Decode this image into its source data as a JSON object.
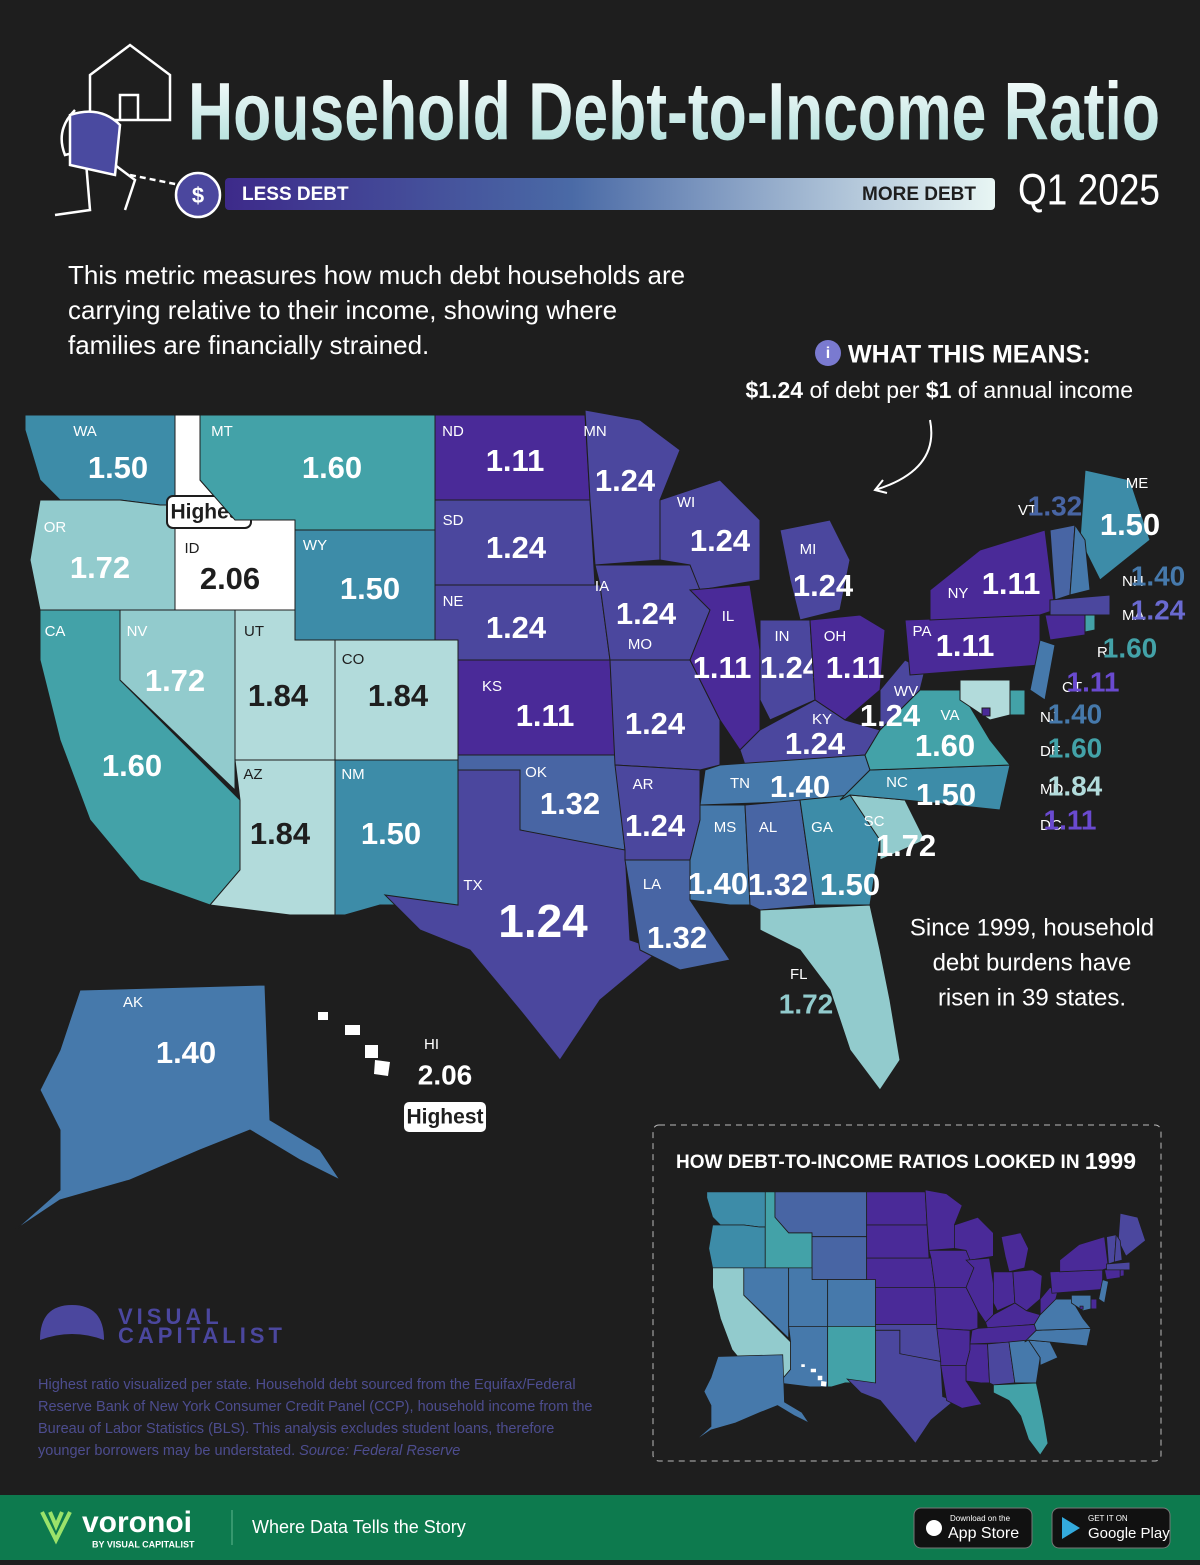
{
  "header": {
    "title": "Household Debt-to-Income Ratio",
    "period": "Q1 2025",
    "legend": {
      "low": "LESS DEBT",
      "high": "MORE DEBT"
    }
  },
  "intro": [
    "This metric measures how much debt households are",
    "carrying relative to their income, showing where",
    "families are financially strained."
  ],
  "what_this_means": {
    "heading": "WHAT THIS MEANS:",
    "text": [
      "$1.24",
      " of debt per ",
      "$1",
      " of annual income"
    ]
  },
  "highest_label": "Highest",
  "states": [
    {
      "abbr": "WA",
      "value": "1.50"
    },
    {
      "abbr": "OR",
      "value": "1.72"
    },
    {
      "abbr": "ID",
      "value": "2.06"
    },
    {
      "abbr": "MT",
      "value": "1.60"
    },
    {
      "abbr": "WY",
      "value": "1.50"
    },
    {
      "abbr": "CA",
      "value": "1.60"
    },
    {
      "abbr": "NV",
      "value": "1.72"
    },
    {
      "abbr": "UT",
      "value": "1.84"
    },
    {
      "abbr": "CO",
      "value": "1.84"
    },
    {
      "abbr": "AZ",
      "value": "1.84"
    },
    {
      "abbr": "NM",
      "value": "1.50"
    },
    {
      "abbr": "ND",
      "value": "1.11"
    },
    {
      "abbr": "SD",
      "value": "1.24"
    },
    {
      "abbr": "NE",
      "value": "1.24"
    },
    {
      "abbr": "KS",
      "value": "1.11"
    },
    {
      "abbr": "OK",
      "value": "1.32"
    },
    {
      "abbr": "TX",
      "value": "1.24"
    },
    {
      "abbr": "MN",
      "value": "1.24"
    },
    {
      "abbr": "IA",
      "value": "1.24"
    },
    {
      "abbr": "MO",
      "value": "1.24"
    },
    {
      "abbr": "AR",
      "value": "1.24"
    },
    {
      "abbr": "LA",
      "value": "1.32"
    },
    {
      "abbr": "WI",
      "value": "1.24"
    },
    {
      "abbr": "IL",
      "value": "1.11"
    },
    {
      "abbr": "MI",
      "value": "1.24"
    },
    {
      "abbr": "IN",
      "value": "1.24"
    },
    {
      "abbr": "OH",
      "value": "1.11"
    },
    {
      "abbr": "KY",
      "value": "1.24"
    },
    {
      "abbr": "TN",
      "value": "1.40"
    },
    {
      "abbr": "MS",
      "value": "1.40"
    },
    {
      "abbr": "AL",
      "value": "1.32"
    },
    {
      "abbr": "GA",
      "value": "1.50"
    },
    {
      "abbr": "FL",
      "value": "1.72"
    },
    {
      "abbr": "SC",
      "value": "1.72"
    },
    {
      "abbr": "NC",
      "value": "1.50"
    },
    {
      "abbr": "VA",
      "value": "1.60"
    },
    {
      "abbr": "WV",
      "value": "1.24"
    },
    {
      "abbr": "PA",
      "value": "1.11"
    },
    {
      "abbr": "NY",
      "value": "1.11"
    },
    {
      "abbr": "VT",
      "value": "1.32"
    },
    {
      "abbr": "ME",
      "value": "1.50"
    },
    {
      "abbr": "NH",
      "value": "1.40"
    },
    {
      "abbr": "MA",
      "value": "1.24"
    },
    {
      "abbr": "RI",
      "value": "1.60"
    },
    {
      "abbr": "CT",
      "value": "1.11"
    },
    {
      "abbr": "NJ",
      "value": "1.40"
    },
    {
      "abbr": "DE",
      "value": "1.60"
    },
    {
      "abbr": "MD",
      "value": "1.84"
    },
    {
      "abbr": "DC",
      "value": "1.11"
    },
    {
      "abbr": "AK",
      "value": "1.40"
    },
    {
      "abbr": "HI",
      "value": "2.06"
    }
  ],
  "note": [
    "Since 1999, household",
    "debt burdens have",
    "risen in 39 states."
  ],
  "inset": {
    "title": "HOW DEBT-TO-INCOME RATIOS LOOKED IN",
    "year": "1999"
  },
  "brand": [
    "VISUAL",
    "CAPITALIST"
  ],
  "footnote": [
    "Highest ratio visualized per state. Household debt sourced from the Equifax/Federal",
    "Reserve Bank of New York Consumer Credit Panel (CCP), household income from the",
    "Bureau of Labor Statistics (BLS).  This analysis excludes student loans, therefore",
    "younger borrowers may be understated. "
  ],
  "source": "Source: Federal Reserve",
  "footer": {
    "name": "voronoi",
    "byline": "BY VISUAL CAPITALIST",
    "tagline": "Where Data Tells the Story",
    "apple": [
      "Download on the",
      "App Store"
    ],
    "google": [
      "GET IT ON",
      "Google Play"
    ]
  }
}
